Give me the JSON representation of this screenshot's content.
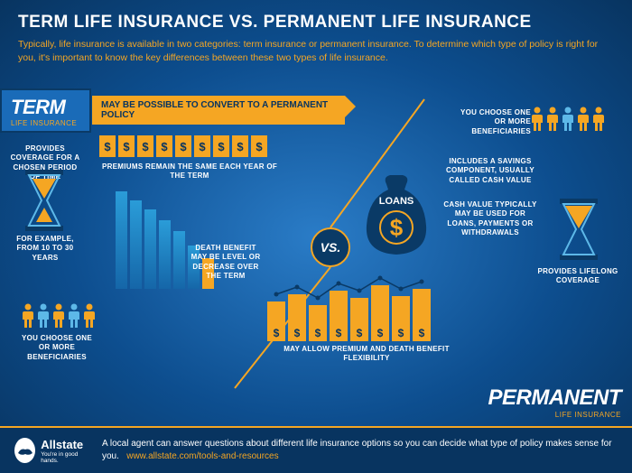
{
  "header": {
    "title": "TERM LIFE INSURANCE VS. PERMANENT LIFE INSURANCE",
    "subtitle": "Typically, life insurance is available in two categories: term insurance or permanent insurance. To determine which type of policy is right for you, it's important to know the key differences between these two types of life insurance."
  },
  "term_tag": {
    "big": "TERM",
    "small": "LIFE INSURANCE"
  },
  "perm_tag": {
    "big": "PERMANENT",
    "small": "LIFE INSURANCE"
  },
  "convert_bar": "MAY BE POSSIBLE TO CONVERT TO A PERMANENT POLICY",
  "vs": "VS.",
  "term": {
    "hourglass_top": "PROVIDES COVERAGE FOR A CHOSEN PERIOD OF TIME",
    "hourglass_bottom": "FOR EXAMPLE, FROM 10 TO 30 YEARS",
    "premium_row": {
      "count": 9,
      "symbol": "$",
      "caption": "PREMIUMS REMAIN THE SAME EACH YEAR OF THE TERM"
    },
    "death_chart": {
      "heights": [
        108,
        98,
        88,
        76,
        64,
        48,
        34
      ],
      "orange_last": true,
      "caption": "DEATH BENEFIT MAY BE LEVEL OR DECREASE OVER THE TERM"
    },
    "beneficiaries": "YOU CHOOSE ONE OR MORE BENEFICIARIES"
  },
  "perm": {
    "beneficiaries": "YOU CHOOSE ONE OR MORE BENEFICIARIES",
    "savings": "INCLUDES A SAVINGS COMPONENT, USUALLY CALLED CASH VALUE",
    "cash": "CASH VALUE TYPICALLY MAY BE USED FOR LOANS, PAYMENTS OR WITHDRAWALS",
    "bag_label": "LOANS",
    "flex_chart": {
      "heights": [
        44,
        52,
        40,
        56,
        48,
        62,
        50,
        58
      ],
      "symbol": "$",
      "caption": "MAY ALLOW PREMIUM AND DEATH BENEFIT FLEXIBILITY"
    },
    "hourglass": "PROVIDES LIFELONG COVERAGE"
  },
  "footer": {
    "brand": "Allstate",
    "tagline": "You're in good hands.",
    "text": "A local agent can answer questions about different life insurance options so you can decide what type of policy makes sense for you.",
    "url": "www.allstate.com/tools-and-resources"
  },
  "colors": {
    "orange": "#f5a623",
    "darkblue": "#083460",
    "blue": "#1a6bb8",
    "cyan": "#2a9cd8"
  }
}
